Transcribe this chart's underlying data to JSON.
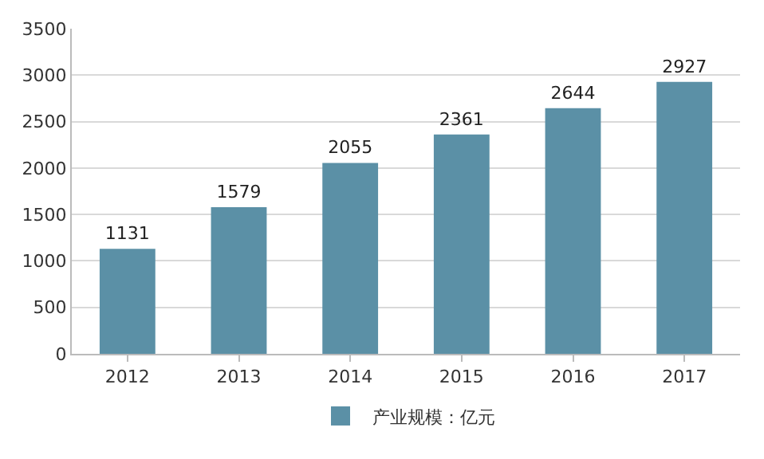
{
  "chart_data": {
    "type": "bar",
    "categories": [
      "2012",
      "2013",
      "2014",
      "2015",
      "2016",
      "2017"
    ],
    "series": [
      {
        "name": "产业规模：亿元",
        "color": "#5b90a6",
        "values": [
          1131,
          1579,
          2055,
          2361,
          2644,
          2927
        ]
      }
    ],
    "ylim": [
      0,
      3500
    ],
    "yticks": [
      0,
      500,
      1000,
      1500,
      2000,
      2500,
      3000,
      3500
    ],
    "grid": "y",
    "legend": "bottom",
    "data_labels": true
  }
}
